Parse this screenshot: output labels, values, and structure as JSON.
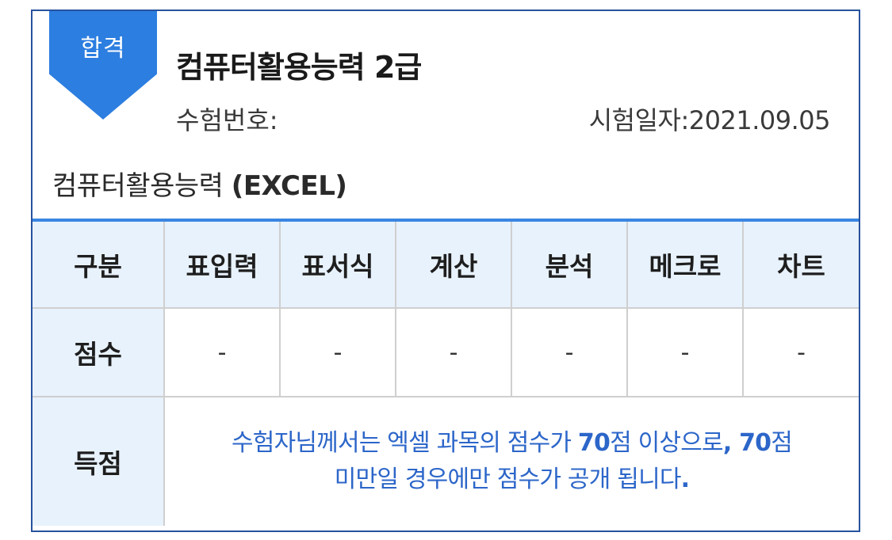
{
  "result_badge": "합격",
  "certificate_title": "컴퓨터활용능력 2급",
  "exam_number_label": "수험번호:",
  "exam_number_value": "",
  "exam_date_label": "시험일자:",
  "exam_date_value": "2021.09.05",
  "subject": {
    "name": "컴퓨터활용능력",
    "type": "(EXCEL)"
  },
  "table": {
    "header_label": "구분",
    "columns": [
      "표입력",
      "표서식",
      "계산",
      "분석",
      "메크로",
      "차트"
    ],
    "score_label": "점수",
    "scores": [
      "-",
      "-",
      "-",
      "-",
      "-",
      "-"
    ],
    "gain_label": "득점",
    "gain_notice": {
      "line1_a": "수험자님께서는 엑셀 과목의 점수가 ",
      "line1_b": "70",
      "line1_c": "점 이상으로",
      "line1_d": ", 70",
      "line1_e": "점",
      "line2_a": "미만일 경우에만 점수가 공개 됩니다",
      "line2_b": "."
    }
  },
  "colors": {
    "border": "#27529e",
    "badge": "#2c7ee0",
    "table_accent": "#3a86e2",
    "header_bg": "#e8f2fd",
    "notice_text": "#2c66c9"
  }
}
